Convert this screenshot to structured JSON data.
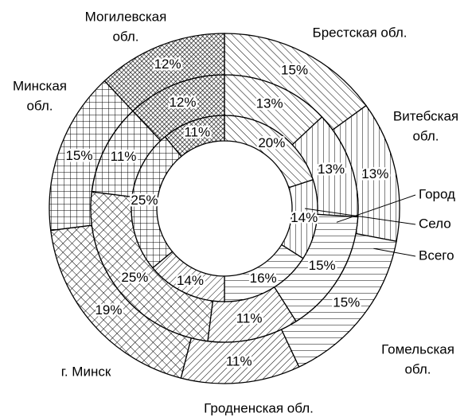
{
  "chart_data": {
    "type": "donut",
    "categories": [
      "Брестская обл.",
      "Витебская обл.",
      "Гомельская обл.",
      "Гродненская обл.",
      "г. Минск",
      "Минская обл.",
      "Могилевская обл."
    ],
    "series": [
      {
        "name": "Всего",
        "values": [
          15,
          13,
          15,
          11,
          19,
          15,
          12
        ],
        "value_labels": [
          "15%",
          "13%",
          "15%",
          "11%",
          "19%",
          "15%",
          "12%"
        ]
      },
      {
        "name": "Город",
        "values": [
          13,
          13,
          15,
          11,
          25,
          11,
          12
        ],
        "value_labels": [
          "13%",
          "13%",
          "15%",
          "11%",
          "25%",
          "11%",
          "12%"
        ]
      },
      {
        "name": "Село",
        "values": [
          20,
          14,
          16,
          14,
          0,
          25,
          11
        ],
        "value_labels": [
          "20%",
          "14%",
          "16%",
          "14%",
          null,
          "25%",
          "11%"
        ]
      }
    ]
  }
}
